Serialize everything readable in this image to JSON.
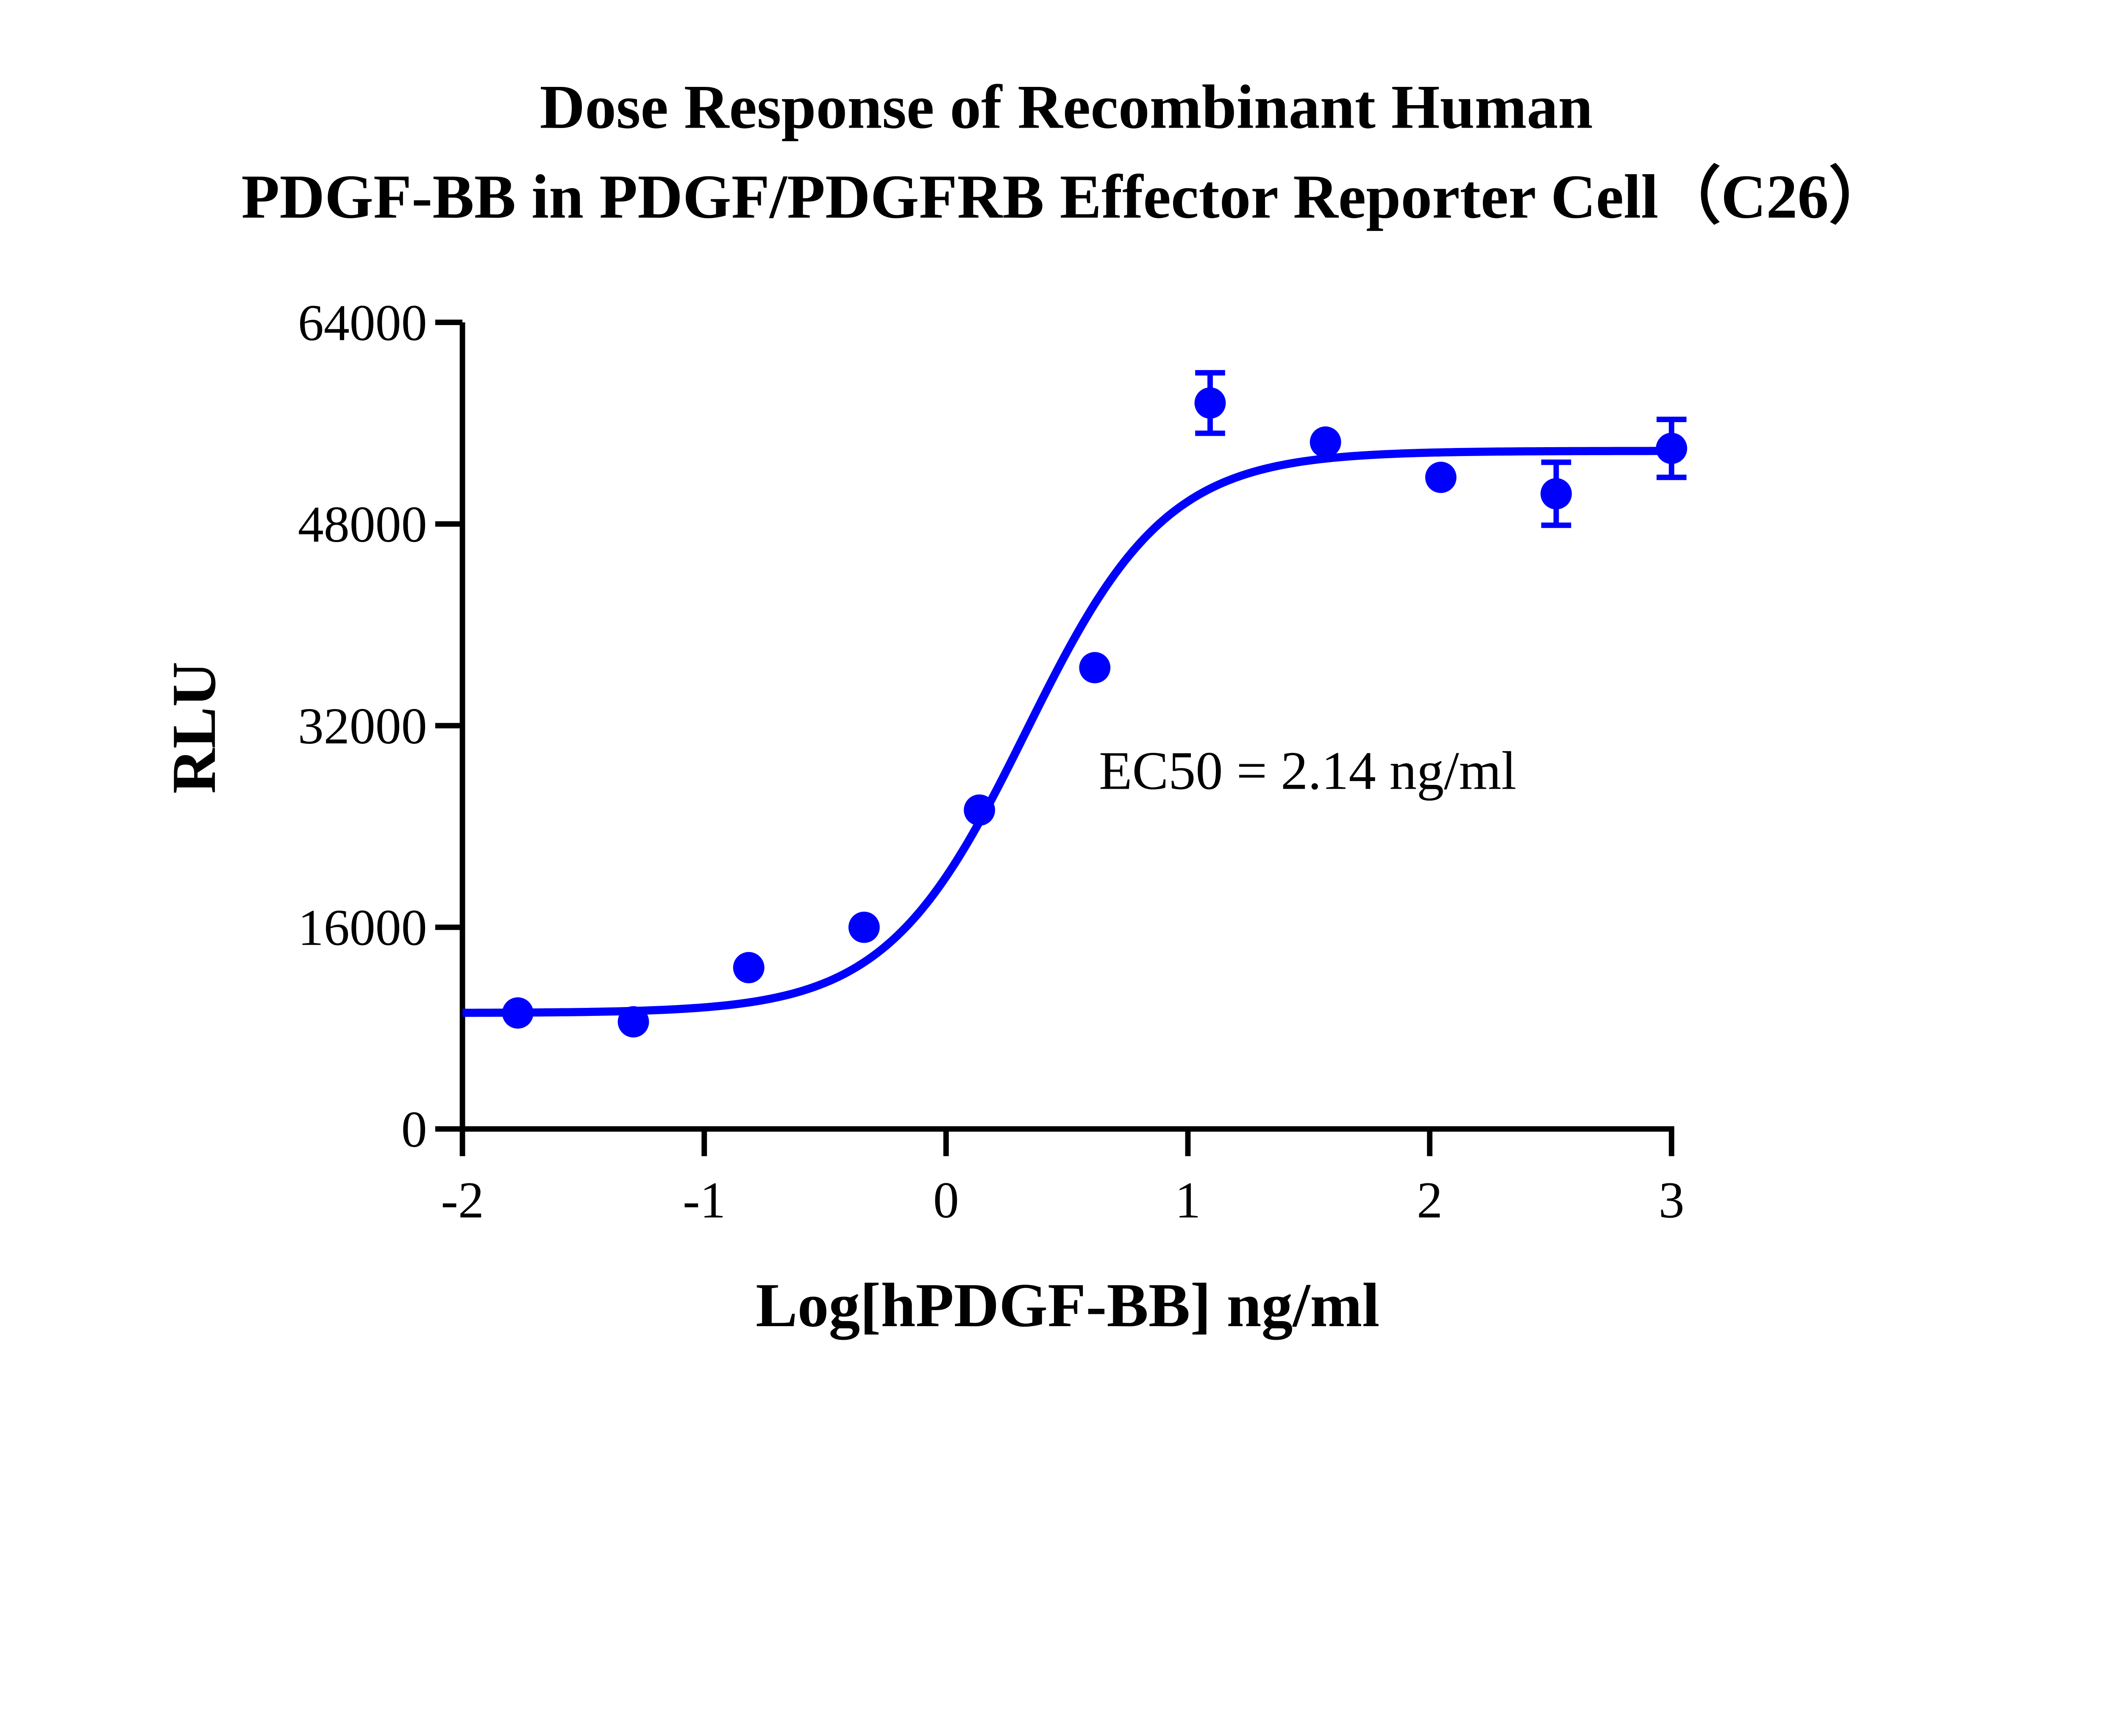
{
  "chart_data": {
    "type": "scatter",
    "title": [
      "Dose Response of Recombinant Human",
      "PDGF-BB in PDGF/PDGFRB Effector Reporter Cell（C26）"
    ],
    "xlabel": "Log[hPDGF-BB] ng/ml",
    "ylabel": "RLU",
    "xlim": [
      -2,
      3
    ],
    "ylim": [
      0,
      64000
    ],
    "xticks": [
      "-2",
      "-1",
      "0",
      "1",
      "2",
      "3"
    ],
    "yticks": [
      "0",
      "16000",
      "32000",
      "48000",
      "64000"
    ],
    "grid": false,
    "color": "#0000FF",
    "annotation": "EC50 = 2.14 ng/ml",
    "points": [
      {
        "x": -1.771,
        "y": 9200,
        "err": 0
      },
      {
        "x": -1.293,
        "y": 8500,
        "err": 0
      },
      {
        "x": -0.816,
        "y": 12800,
        "err": 0
      },
      {
        "x": -0.339,
        "y": 16000,
        "err": 0
      },
      {
        "x": 0.138,
        "y": 25300,
        "err": 0
      },
      {
        "x": 0.615,
        "y": 36600,
        "err": 0
      },
      {
        "x": 1.092,
        "y": 57600,
        "err": 2400
      },
      {
        "x": 1.569,
        "y": 54500,
        "err": 0
      },
      {
        "x": 2.046,
        "y": 51700,
        "err": 0
      },
      {
        "x": 2.523,
        "y": 50400,
        "err": 2500
      },
      {
        "x": 3.0,
        "y": 54000,
        "err": 2300
      }
    ],
    "fit": {
      "model": "4PL",
      "bottom": 9200,
      "top": 53800,
      "logEC50": 0.33,
      "hill": 1.5
    }
  }
}
